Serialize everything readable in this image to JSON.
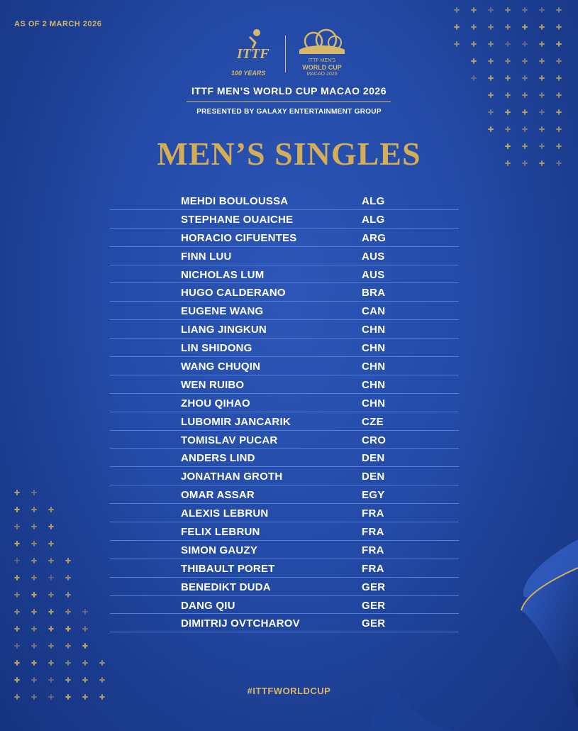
{
  "header": {
    "as_of": "AS OF 2 MARCH 2026",
    "ittf_logo_text": "ITTF",
    "ittf_anniversary": "100 YEARS",
    "wc_logo_line1": "ITTF MEN'S",
    "wc_logo_line2": "WORLD CUP",
    "wc_logo_line3": "MACAO 2026",
    "event_title": "ITTF MEN’S WORLD CUP MACAO 2026",
    "presented_by": "PRESENTED BY GALAXY ENTERTAINMENT GROUP"
  },
  "heading": "MEN’S SINGLES",
  "players": [
    {
      "name": "MEHDI BOULOUSSA",
      "country": "ALG"
    },
    {
      "name": "STEPHANE OUAICHE",
      "country": "ALG"
    },
    {
      "name": "HORACIO CIFUENTES",
      "country": "ARG"
    },
    {
      "name": "FINN LUU",
      "country": "AUS"
    },
    {
      "name": "NICHOLAS LUM",
      "country": "AUS"
    },
    {
      "name": "HUGO CALDERANO",
      "country": "BRA"
    },
    {
      "name": "EUGENE WANG",
      "country": "CAN"
    },
    {
      "name": "LIANG JINGKUN",
      "country": "CHN"
    },
    {
      "name": "LIN SHIDONG",
      "country": "CHN"
    },
    {
      "name": "WANG CHUQIN",
      "country": "CHN"
    },
    {
      "name": "WEN RUIBO",
      "country": "CHN"
    },
    {
      "name": "ZHOU QIHAO",
      "country": "CHN"
    },
    {
      "name": "LUBOMIR JANCARIK",
      "country": "CZE"
    },
    {
      "name": "TOMISLAV PUCAR",
      "country": "CRO"
    },
    {
      "name": "ANDERS LIND",
      "country": "DEN"
    },
    {
      "name": "JONATHAN GROTH",
      "country": "DEN"
    },
    {
      "name": "OMAR ASSAR",
      "country": "EGY"
    },
    {
      "name": "ALEXIS LEBRUN",
      "country": "FRA"
    },
    {
      "name": "FELIX LEBRUN",
      "country": "FRA"
    },
    {
      "name": "SIMON GAUZY",
      "country": "FRA"
    },
    {
      "name": "THIBAULT PORET",
      "country": "FRA"
    },
    {
      "name": "BENEDIKT DUDA",
      "country": "GER"
    },
    {
      "name": "DANG QIU",
      "country": "GER"
    },
    {
      "name": "DIMITRIJ OVTCHAROV",
      "country": "GER"
    }
  ],
  "footer": {
    "hashtag": "#ITTFWORLDCUP"
  },
  "colors": {
    "background": "#234aa6",
    "accent_gold": "#d4ae57",
    "row_divider": "#4f7fd8"
  },
  "icons": [
    "ittf-logo-icon",
    "world-cup-logo-icon"
  ]
}
